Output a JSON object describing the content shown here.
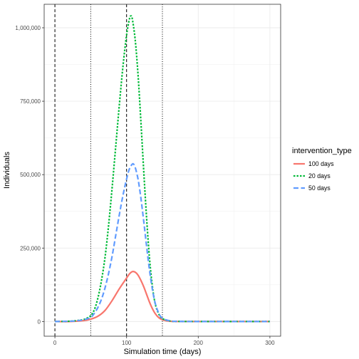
{
  "chart_data": {
    "type": "line",
    "xlabel": "Simulation time (days)",
    "ylabel": "Individuals",
    "xlim": [
      -15,
      315
    ],
    "ylim": [
      -50000,
      1080000
    ],
    "x_ticks": [
      0,
      100,
      200,
      300
    ],
    "x_tick_labels": [
      "0",
      "100",
      "200",
      "300"
    ],
    "y_ticks": [
      0,
      250000,
      500000,
      750000,
      1000000
    ],
    "y_tick_labels": [
      "0",
      "250,000",
      "500,000",
      "750,000",
      "1,000,000"
    ],
    "grid": true,
    "legend": {
      "title": "intervention_type",
      "position": "right",
      "entries": [
        "100 days",
        "20 days",
        "50 days"
      ]
    },
    "vlines": [
      {
        "x": 0,
        "style": "dashed"
      },
      {
        "x": 100,
        "style": "dashed"
      },
      {
        "x": 50,
        "style": "dotted"
      },
      {
        "x": 150,
        "style": "dotted"
      }
    ],
    "series": [
      {
        "name": "100 days",
        "color": "#F8766D",
        "dash": "solid",
        "x": [
          0,
          20,
          40,
          50,
          60,
          70,
          80,
          90,
          100,
          104,
          108,
          112,
          116,
          120,
          124,
          128,
          132,
          136,
          140,
          145,
          150,
          155,
          160,
          170,
          200,
          250,
          300
        ],
        "y": [
          0,
          0,
          3000,
          8000,
          18000,
          38000,
          72000,
          112000,
          148000,
          162000,
          170000,
          168000,
          158000,
          140000,
          118000,
          92000,
          66000,
          44000,
          27000,
          13000,
          6000,
          2500,
          1000,
          200,
          0,
          0,
          0
        ]
      },
      {
        "name": "20 days",
        "color": "#00BA38",
        "dash": "dotted",
        "x": [
          0,
          20,
          30,
          40,
          45,
          50,
          55,
          60,
          65,
          70,
          75,
          80,
          85,
          90,
          95,
          100,
          104,
          106,
          108,
          112,
          116,
          120,
          124,
          128,
          132,
          136,
          140,
          145,
          150,
          160,
          170,
          200,
          250,
          300
        ],
        "y": [
          0,
          1000,
          3000,
          7000,
          12000,
          20000,
          40000,
          80000,
          140000,
          220000,
          330000,
          460000,
          600000,
          740000,
          870000,
          975000,
          1030000,
          1040000,
          1030000,
          960000,
          840000,
          680000,
          510000,
          350000,
          215000,
          120000,
          60000,
          25000,
          10000,
          2000,
          500,
          0,
          0,
          0
        ]
      },
      {
        "name": "50 days",
        "color": "#619CFF",
        "dash": "dashed",
        "x": [
          0,
          20,
          30,
          40,
          50,
          55,
          60,
          65,
          70,
          75,
          80,
          85,
          90,
          95,
          100,
          104,
          108,
          110,
          112,
          116,
          120,
          124,
          128,
          132,
          136,
          140,
          145,
          150,
          160,
          170,
          200,
          250,
          300
        ],
        "y": [
          0,
          1000,
          2500,
          6000,
          14000,
          28000,
          48000,
          76000,
          115000,
          165000,
          225000,
          295000,
          365000,
          430000,
          485000,
          520000,
          536000,
          535000,
          525000,
          485000,
          420000,
          340000,
          255000,
          175000,
          110000,
          62000,
          28000,
          11000,
          2500,
          500,
          0,
          0,
          0
        ]
      }
    ]
  }
}
